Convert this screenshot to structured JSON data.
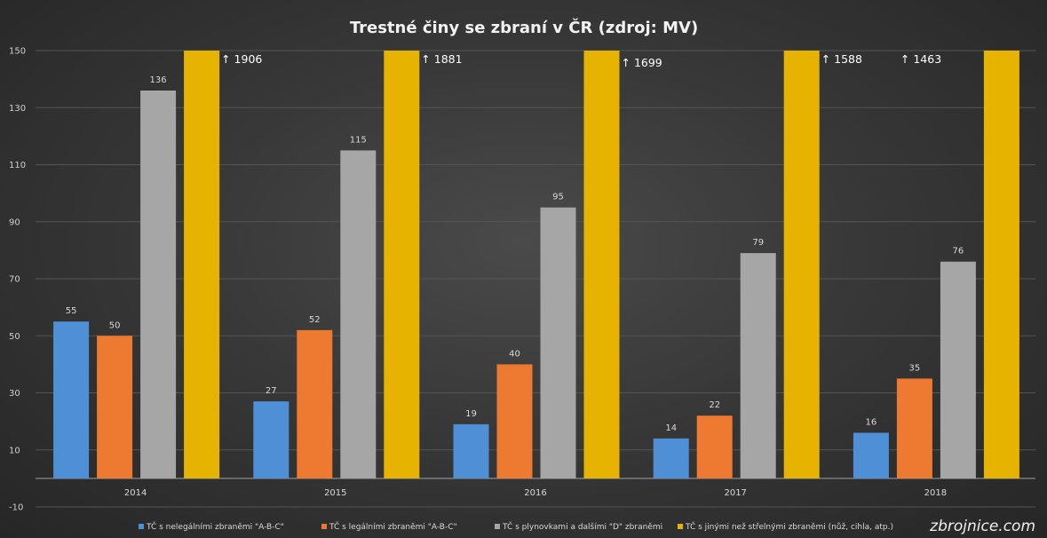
{
  "chart_data": {
    "type": "bar",
    "title": "Trestné činy se zbraní v ČR (zdroj: MV)",
    "categories": [
      "2014",
      "2015",
      "2016",
      "2017",
      "2018"
    ],
    "series": [
      {
        "name": "TČ s nelegálními zbraněmi \"A-B-C\"",
        "color": "#4f8fd6",
        "values": [
          55,
          27,
          19,
          14,
          16
        ],
        "labels": [
          "55",
          "27",
          "19",
          "14",
          "16"
        ]
      },
      {
        "name": "TČ s legálními zbraněmi \"A-B-C\"",
        "color": "#ee7a32",
        "values": [
          50,
          52,
          40,
          22,
          35
        ],
        "labels": [
          "50",
          "52",
          "40",
          "22",
          "35"
        ]
      },
      {
        "name": "TČ s plynovkami a dalšími \"D\" zbraněmi",
        "color": "#a6a6a6",
        "values": [
          136,
          115,
          95,
          79,
          76
        ],
        "labels": [
          "136",
          "115",
          "95",
          "79",
          "76"
        ]
      },
      {
        "name": "TČ s jinými než střelnými zbraněmi (nůž, cihla, atp.)",
        "color": "#e6b400",
        "values": [
          1906,
          1881,
          1699,
          1588,
          1463
        ],
        "labels": [
          "↑ 1906",
          "↑ 1881",
          "↑ 1699",
          "↑ 1588",
          "↑ 1463"
        ],
        "truncated_at_axis_max": true
      }
    ],
    "ylim": [
      -10,
      150
    ],
    "yticks": [
      "-10",
      "10",
      "30",
      "50",
      "70",
      "90",
      "110",
      "130",
      "150"
    ],
    "grid": true,
    "legend_position": "bottom",
    "xlabel": "",
    "ylabel": ""
  },
  "watermark": "zbrojnice.com",
  "colors": {
    "background": "#383838",
    "gridline": "#555555",
    "axis_line": "#a0a0a0"
  }
}
